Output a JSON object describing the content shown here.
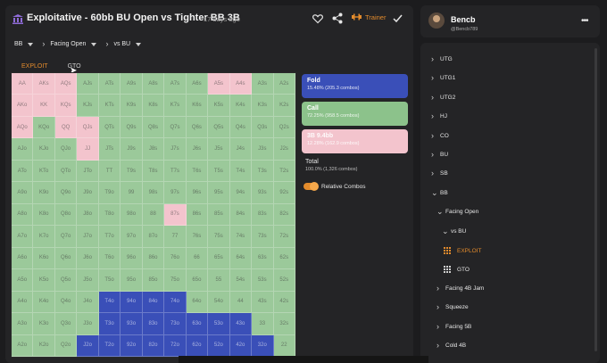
{
  "header": {
    "title": "Exploitative - 60bb BU Open vs Tighter BB 3B",
    "time_ago": "17 days ago",
    "trainer_label": "Trainer"
  },
  "selectors": [
    {
      "label": "BB",
      "has_chevron": false
    },
    {
      "label": "Facing Open",
      "has_chevron": true
    },
    {
      "label": "vs BU",
      "has_chevron": true
    }
  ],
  "tabs": [
    {
      "label": "EXPLOIT",
      "active": true
    },
    {
      "label": "GTO",
      "active": false
    }
  ],
  "legend": {
    "fold": {
      "name": "Fold",
      "value": "15.48% (205.3 combos)"
    },
    "call": {
      "name": "Call",
      "value": "72.25% (958.5 combos)"
    },
    "raise": {
      "name": "3B 9.4bb",
      "value": "12.28% (162.9 combos)"
    },
    "total": {
      "name": "Total",
      "value": "100.0% (1,326 combos)"
    },
    "relative_combos": "Relative Combos"
  },
  "colors": {
    "call": "#9bc99a",
    "raise": "#f3c4cd",
    "fold": "#3a4fb8",
    "accent": "#e38b2c"
  },
  "grid": {
    "labels": [
      [
        "AA",
        "AKs",
        "AQs",
        "AJs",
        "ATs",
        "A9s",
        "A8s",
        "A7s",
        "A6s",
        "A5s",
        "A4s",
        "A3s",
        "A2s"
      ],
      [
        "AKo",
        "KK",
        "KQs",
        "KJs",
        "KTs",
        "K9s",
        "K8s",
        "K7s",
        "K6s",
        "K5s",
        "K4s",
        "K3s",
        "K2s"
      ],
      [
        "AQo",
        "KQo",
        "QQ",
        "QJs",
        "QTs",
        "Q9s",
        "Q8s",
        "Q7s",
        "Q6s",
        "Q5s",
        "Q4s",
        "Q3s",
        "Q2s"
      ],
      [
        "AJo",
        "KJo",
        "QJo",
        "JJ",
        "JTs",
        "J9s",
        "J8s",
        "J7s",
        "J6s",
        "J5s",
        "J4s",
        "J3s",
        "J2s"
      ],
      [
        "ATo",
        "KTo",
        "QTo",
        "JTo",
        "TT",
        "T9s",
        "T8s",
        "T7s",
        "T6s",
        "T5s",
        "T4s",
        "T3s",
        "T2s"
      ],
      [
        "A9o",
        "K9o",
        "Q9o",
        "J9o",
        "T9o",
        "99",
        "98s",
        "97s",
        "96s",
        "95s",
        "94s",
        "93s",
        "92s"
      ],
      [
        "A8o",
        "K8o",
        "Q8o",
        "J8o",
        "T8o",
        "98o",
        "88",
        "87s",
        "86s",
        "85s",
        "84s",
        "83s",
        "82s"
      ],
      [
        "A7o",
        "K7o",
        "Q7o",
        "J7o",
        "T7o",
        "97o",
        "87o",
        "77",
        "76s",
        "75s",
        "74s",
        "73s",
        "72s"
      ],
      [
        "A6o",
        "K6o",
        "Q6o",
        "J6o",
        "T6o",
        "96o",
        "86o",
        "76o",
        "66",
        "65s",
        "64s",
        "63s",
        "62s"
      ],
      [
        "A5o",
        "K5o",
        "Q5o",
        "J5o",
        "T5o",
        "95o",
        "85o",
        "75o",
        "65o",
        "55",
        "54s",
        "53s",
        "52s"
      ],
      [
        "A4o",
        "K4o",
        "Q4o",
        "J4o",
        "T4o",
        "94o",
        "84o",
        "74o",
        "64o",
        "54o",
        "44",
        "43s",
        "42s"
      ],
      [
        "A3o",
        "K3o",
        "Q3o",
        "J3o",
        "T3o",
        "93o",
        "83o",
        "73o",
        "63o",
        "53o",
        "43o",
        "33",
        "32s"
      ],
      [
        "A2o",
        "K2o",
        "Q2o",
        "J2o",
        "T2o",
        "92o",
        "82o",
        "72o",
        "62o",
        "52o",
        "42o",
        "32o",
        "22"
      ]
    ],
    "actions": [
      [
        "R",
        "R",
        "R",
        "C",
        "C",
        "C",
        "C",
        "C",
        "C",
        "R",
        "R",
        "C",
        "C"
      ],
      [
        "R",
        "R",
        "R",
        "C",
        "C",
        "C",
        "C",
        "C",
        "C",
        "C",
        "C",
        "C",
        "C"
      ],
      [
        "R",
        "C",
        "R",
        "R",
        "C",
        "C",
        "C",
        "C",
        "C",
        "C",
        "C",
        "C",
        "C"
      ],
      [
        "C",
        "C",
        "C",
        "R",
        "C",
        "C",
        "C",
        "C",
        "C",
        "C",
        "C",
        "C",
        "C"
      ],
      [
        "C",
        "C",
        "C",
        "C",
        "C",
        "C",
        "C",
        "C",
        "C",
        "C",
        "C",
        "C",
        "C"
      ],
      [
        "C",
        "C",
        "C",
        "C",
        "C",
        "C",
        "C",
        "C",
        "C",
        "C",
        "C",
        "C",
        "C"
      ],
      [
        "C",
        "C",
        "C",
        "C",
        "C",
        "C",
        "C",
        "R",
        "C",
        "C",
        "C",
        "C",
        "C"
      ],
      [
        "C",
        "C",
        "C",
        "C",
        "C",
        "C",
        "C",
        "C",
        "C",
        "C",
        "C",
        "C",
        "C"
      ],
      [
        "C",
        "C",
        "C",
        "C",
        "C",
        "C",
        "C",
        "C",
        "C",
        "C",
        "C",
        "C",
        "C"
      ],
      [
        "C",
        "C",
        "C",
        "C",
        "C",
        "C",
        "C",
        "C",
        "C",
        "C",
        "C",
        "C",
        "C"
      ],
      [
        "C",
        "C",
        "C",
        "C",
        "F",
        "F",
        "F",
        "F",
        "C",
        "C",
        "C",
        "C",
        "C"
      ],
      [
        "C",
        "C",
        "C",
        "C",
        "F",
        "F",
        "F",
        "F",
        "F",
        "F",
        "F",
        "C",
        "C"
      ],
      [
        "C",
        "C",
        "C",
        "F",
        "F",
        "F",
        "F",
        "F",
        "F",
        "F",
        "F",
        "F",
        "C"
      ]
    ]
  },
  "user": {
    "name": "Bencb",
    "handle": "@Bencb789"
  },
  "tree": [
    {
      "label": "UTG",
      "level": 0,
      "expanded": false
    },
    {
      "label": "UTG1",
      "level": 0,
      "expanded": false
    },
    {
      "label": "UTG2",
      "level": 0,
      "expanded": false
    },
    {
      "label": "HJ",
      "level": 0,
      "expanded": false
    },
    {
      "label": "CO",
      "level": 0,
      "expanded": false
    },
    {
      "label": "BU",
      "level": 0,
      "expanded": false
    },
    {
      "label": "SB",
      "level": 0,
      "expanded": false
    },
    {
      "label": "BB",
      "level": 0,
      "expanded": true
    },
    {
      "label": "Facing Open",
      "level": 1,
      "expanded": true
    },
    {
      "label": "vs BU",
      "level": 2,
      "expanded": true
    },
    {
      "label": "EXPLOIT",
      "level": 3,
      "leaf": true,
      "active": true
    },
    {
      "label": "GTO",
      "level": 3,
      "leaf": true,
      "active": false
    },
    {
      "label": "Facing 4B Jam",
      "level": 1,
      "expanded": false
    },
    {
      "label": "Squeeze",
      "level": 1,
      "expanded": false
    },
    {
      "label": "Facing 5B",
      "level": 1,
      "expanded": false
    },
    {
      "label": "Cold 4B",
      "level": 1,
      "expanded": false
    }
  ]
}
